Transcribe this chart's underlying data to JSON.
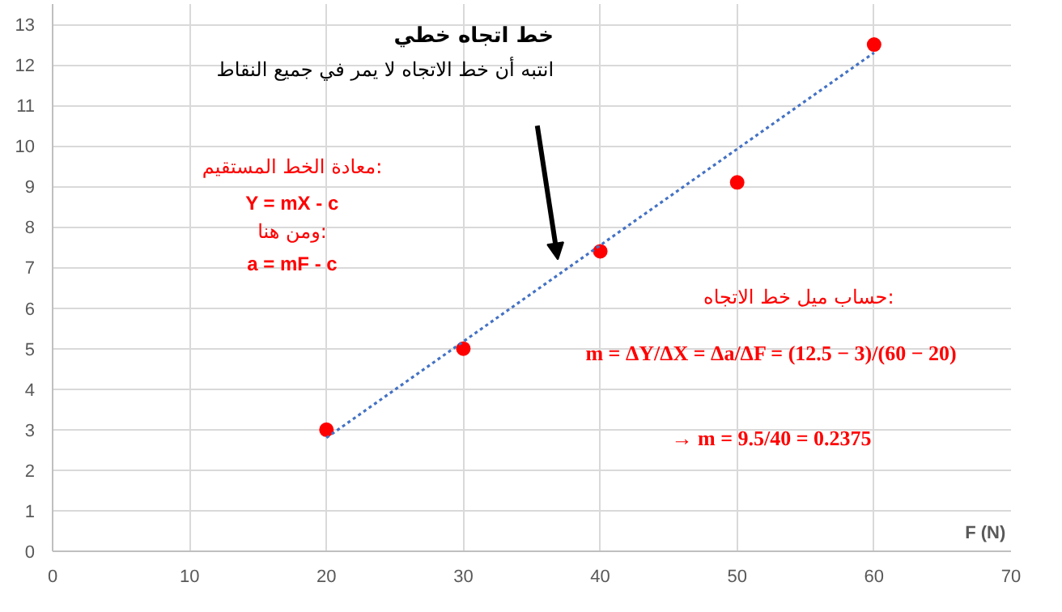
{
  "chart_data": {
    "type": "scatter",
    "xlabel": "F (N)",
    "x": [
      20,
      30,
      40,
      50,
      60
    ],
    "series": [
      {
        "color": "#ff0000",
        "values": [
          3,
          5,
          7.4,
          9.1,
          12.5
        ],
        "marker": "circle"
      },
      {
        "type": "line",
        "color": "#4472c4",
        "x": [
          20,
          60
        ],
        "values": [
          2.8,
          12.3
        ],
        "line_style": "dotted",
        "marker": "none"
      }
    ],
    "xlim": [
      0,
      70
    ],
    "ylim": [
      0,
      13.5
    ],
    "xticks": [
      0,
      10,
      20,
      30,
      40,
      50,
      60,
      70
    ],
    "yticks": [
      0,
      1,
      2,
      3,
      4,
      5,
      6,
      7,
      8,
      9,
      10,
      11,
      12,
      13
    ],
    "grid": true,
    "annotations": [
      "خط اتجاه خطي",
      "انتبه أن خط الاتجاه لا يمر في جميع النقاط",
      "معادة الخط المستقيم:",
      "Y = mX - c",
      "ومن هنا:",
      "a = mF - c",
      "حساب ميل خط الاتجاه:",
      "m = ΔY/ΔX = Δa/ΔF = (12.5 − 3)/(60 − 20)",
      "→ m = 9.5/40 = 0.2375"
    ]
  }
}
